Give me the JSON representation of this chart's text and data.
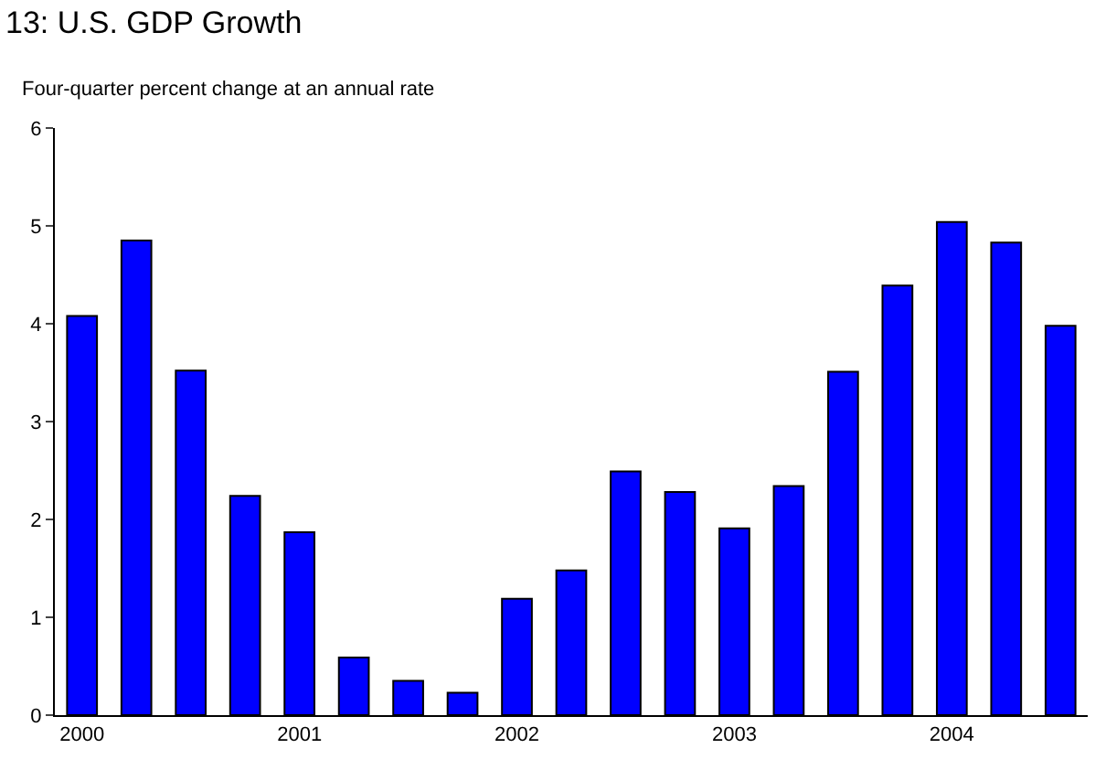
{
  "chart_data": {
    "type": "bar",
    "title": "13: U.S. GDP Growth",
    "subtitle": "Four-quarter percent change at an annual rate",
    "categories": [
      "2000",
      null,
      null,
      null,
      "2001",
      null,
      null,
      null,
      "2002",
      null,
      null,
      null,
      "2003",
      null,
      null,
      null,
      "2004",
      null,
      null
    ],
    "values": [
      4.08,
      4.85,
      3.52,
      2.24,
      1.87,
      0.59,
      0.35,
      0.23,
      1.19,
      1.48,
      2.49,
      2.28,
      1.91,
      2.34,
      3.51,
      4.39,
      5.04,
      4.83,
      3.98
    ],
    "color": "#0000ff",
    "ylim": [
      0,
      6
    ],
    "yticks": [
      0,
      1,
      2,
      3,
      4,
      5,
      6
    ]
  }
}
